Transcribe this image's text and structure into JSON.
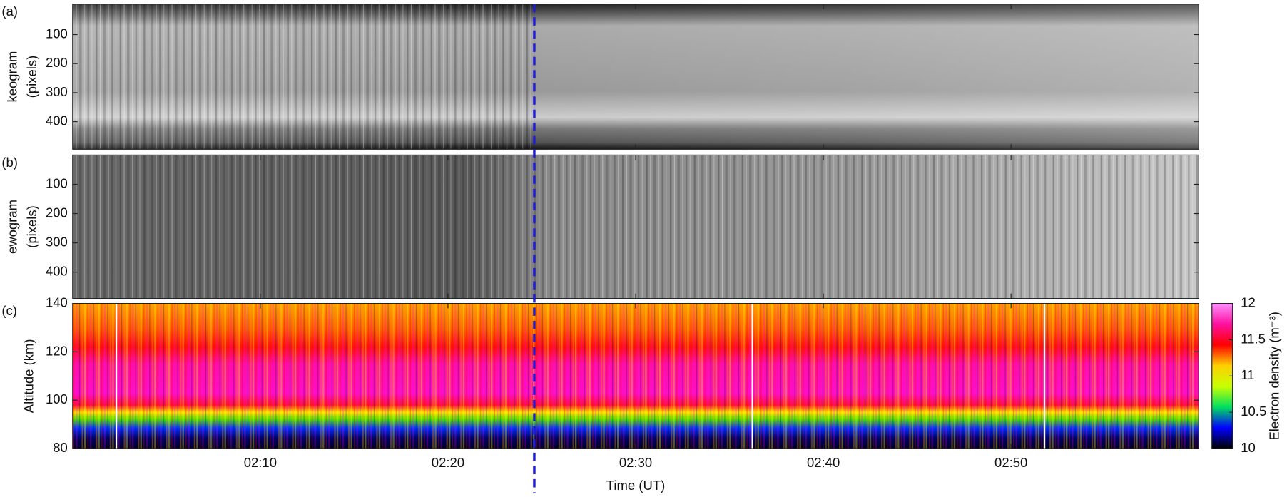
{
  "chart_data": [
    {
      "type": "image",
      "panel_label": "(a)",
      "ylabel": [
        "keogram",
        "(pixels)"
      ],
      "ylim": [
        -5,
        495
      ],
      "yticks": [
        100,
        200,
        300,
        400
      ],
      "y_inverted": true,
      "colormap": "gray"
    },
    {
      "type": "image",
      "panel_label": "(b)",
      "ylabel": [
        "ewogram",
        "(pixels)"
      ],
      "ylim": [
        0,
        490
      ],
      "yticks": [
        100,
        200,
        300,
        400
      ],
      "y_inverted": true,
      "colormap": "gray"
    },
    {
      "type": "heatmap",
      "panel_label": "(c)",
      "ylabel": "Altitude (km)",
      "xlabel": "Time (UT)",
      "xlim": [
        0,
        60
      ],
      "xticks": [
        {
          "value": 10,
          "label": "02:10"
        },
        {
          "value": 20,
          "label": "02:20"
        },
        {
          "value": 30,
          "label": "02:30"
        },
        {
          "value": 40,
          "label": "02:40"
        },
        {
          "value": 50,
          "label": "02:50"
        }
      ],
      "ylim": [
        80,
        140
      ],
      "yticks": [
        80,
        100,
        120,
        140
      ],
      "colorbar": {
        "label": "Electron density (m⁻³)",
        "clim": [
          10,
          12
        ],
        "cticks": [
          10,
          10.5,
          11,
          11.5,
          12
        ],
        "colormap": [
          "#000000",
          "#0000ff",
          "#00e060",
          "#c8ff00",
          "#ffd000",
          "#ff0000",
          "#ff10a0",
          "#ff90ff"
        ]
      },
      "marker_line": {
        "x": 24.6,
        "color": "#1c1cd9",
        "dashed": true
      }
    }
  ]
}
